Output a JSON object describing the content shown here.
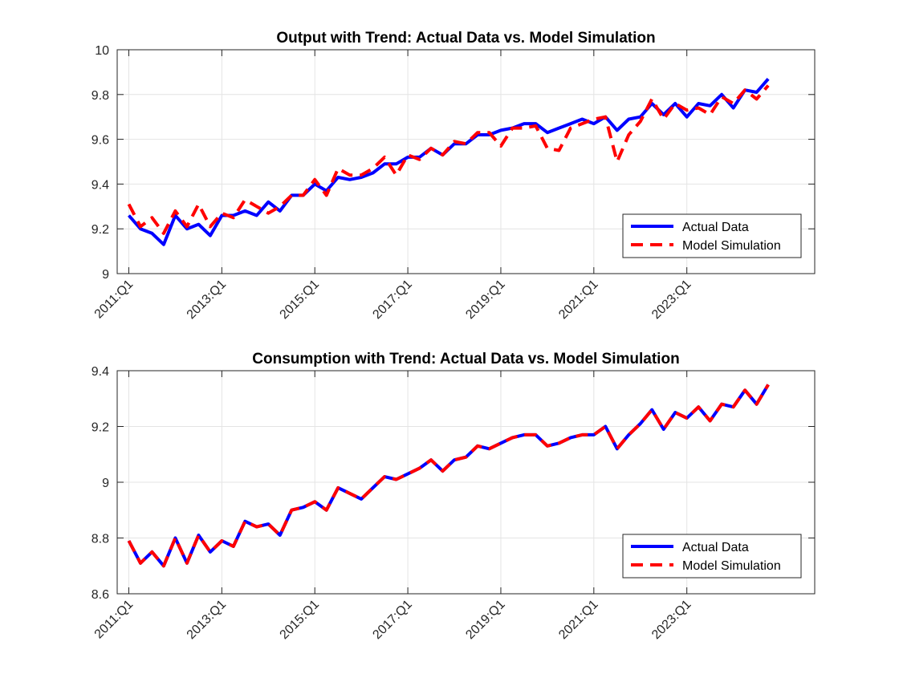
{
  "chart_data": [
    {
      "type": "line",
      "title": "Output with Trend: Actual Data vs. Model Simulation",
      "xlabel": "",
      "ylabel": "",
      "ylim": [
        9,
        10
      ],
      "yticks": [
        "9",
        "9.2",
        "9.4",
        "9.6",
        "9.8",
        "10"
      ],
      "xticks": [
        "2011:Q1",
        "2013:Q1",
        "2015:Q1",
        "2017:Q1",
        "2019:Q1",
        "2021:Q1",
        "2023:Q1"
      ],
      "grid": true,
      "legend_location": "bottom-right",
      "series": [
        {
          "name": "Actual Data",
          "color": "#0000ff",
          "style": "solid",
          "values": [
            9.26,
            9.2,
            9.18,
            9.13,
            9.26,
            9.2,
            9.22,
            9.17,
            9.26,
            9.26,
            9.28,
            9.26,
            9.32,
            9.28,
            9.35,
            9.35,
            9.4,
            9.37,
            9.43,
            9.42,
            9.43,
            9.45,
            9.49,
            9.49,
            9.52,
            9.52,
            9.56,
            9.53,
            9.58,
            9.58,
            9.62,
            9.62,
            9.64,
            9.65,
            9.67,
            9.67,
            9.63,
            9.65,
            9.67,
            9.69,
            9.67,
            9.7,
            9.64,
            9.69,
            9.7,
            9.76,
            9.71,
            9.76,
            9.7,
            9.76,
            9.75,
            9.8,
            9.74,
            9.82,
            9.81,
            9.87
          ]
        },
        {
          "name": "Model Simulation",
          "color": "#ff0000",
          "style": "dashed",
          "values": [
            9.31,
            9.21,
            9.25,
            9.18,
            9.28,
            9.21,
            9.31,
            9.21,
            9.27,
            9.25,
            9.33,
            9.3,
            9.27,
            9.3,
            9.35,
            9.35,
            9.42,
            9.35,
            9.47,
            9.44,
            9.44,
            9.47,
            9.52,
            9.44,
            9.53,
            9.51,
            9.56,
            9.53,
            9.59,
            9.58,
            9.63,
            9.63,
            9.57,
            9.65,
            9.65,
            9.66,
            9.56,
            9.55,
            9.65,
            9.67,
            9.69,
            9.7,
            9.5,
            9.62,
            9.68,
            9.78,
            9.69,
            9.76,
            9.73,
            9.74,
            9.71,
            9.79,
            9.76,
            9.82,
            9.78,
            9.84
          ]
        }
      ]
    },
    {
      "type": "line",
      "title": "Consumption with Trend: Actual Data vs. Model Simulation",
      "xlabel": "",
      "ylabel": "",
      "ylim": [
        8.6,
        9.4
      ],
      "yticks": [
        "8.6",
        "8.8",
        "9",
        "9.2",
        "9.4"
      ],
      "xticks": [
        "2011:Q1",
        "2013:Q1",
        "2015:Q1",
        "2017:Q1",
        "2019:Q1",
        "2021:Q1",
        "2023:Q1"
      ],
      "grid": true,
      "legend_location": "bottom-right",
      "series": [
        {
          "name": "Actual Data",
          "color": "#0000ff",
          "style": "solid",
          "values": [
            8.79,
            8.71,
            8.75,
            8.7,
            8.8,
            8.71,
            8.81,
            8.75,
            8.79,
            8.77,
            8.86,
            8.84,
            8.85,
            8.81,
            8.9,
            8.91,
            8.93,
            8.9,
            8.98,
            8.96,
            8.94,
            8.98,
            9.02,
            9.01,
            9.03,
            9.05,
            9.08,
            9.04,
            9.08,
            9.09,
            9.13,
            9.12,
            9.14,
            9.16,
            9.17,
            9.17,
            9.13,
            9.14,
            9.16,
            9.17,
            9.17,
            9.2,
            9.12,
            9.17,
            9.21,
            9.26,
            9.19,
            9.25,
            9.23,
            9.27,
            9.22,
            9.28,
            9.27,
            9.33,
            9.28,
            9.35
          ]
        },
        {
          "name": "Model Simulation",
          "color": "#ff0000",
          "style": "dashed",
          "values": [
            8.79,
            8.71,
            8.75,
            8.7,
            8.8,
            8.71,
            8.81,
            8.75,
            8.79,
            8.77,
            8.86,
            8.84,
            8.85,
            8.81,
            8.9,
            8.91,
            8.93,
            8.9,
            8.98,
            8.96,
            8.94,
            8.98,
            9.02,
            9.01,
            9.03,
            9.05,
            9.08,
            9.04,
            9.08,
            9.09,
            9.13,
            9.12,
            9.14,
            9.16,
            9.17,
            9.17,
            9.13,
            9.14,
            9.16,
            9.17,
            9.17,
            9.2,
            9.12,
            9.17,
            9.21,
            9.26,
            9.19,
            9.25,
            9.23,
            9.27,
            9.22,
            9.28,
            9.27,
            9.33,
            9.28,
            9.35
          ]
        }
      ]
    }
  ]
}
